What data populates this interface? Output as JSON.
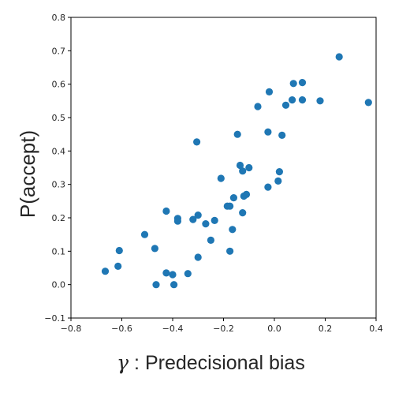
{
  "chart_data": {
    "type": "scatter",
    "xlabel_symbol": "γ",
    "xlabel": " : Predecisional bias",
    "ylabel": "P(accept)",
    "xlim": [
      -0.8,
      0.4
    ],
    "ylim": [
      -0.1,
      0.8
    ],
    "xticks": [
      "−0.8",
      "−0.6",
      "−0.4",
      "−0.2",
      "0.0",
      "0.2",
      "0.4"
    ],
    "yticks": [
      "−0.1",
      "0.0",
      "0.1",
      "0.2",
      "0.3",
      "0.4",
      "0.5",
      "0.6",
      "0.7",
      "0.8"
    ],
    "xtick_values": [
      -0.8,
      -0.6,
      -0.4,
      -0.2,
      0.0,
      0.2,
      0.4
    ],
    "ytick_values": [
      -0.1,
      0.0,
      0.1,
      0.2,
      0.3,
      0.4,
      0.5,
      0.6,
      0.7,
      0.8
    ],
    "marker_color": "#1f77b4",
    "grid": false,
    "points": [
      {
        "x": -0.665,
        "y": 0.04
      },
      {
        "x": -0.615,
        "y": 0.055
      },
      {
        "x": -0.61,
        "y": 0.102
      },
      {
        "x": -0.51,
        "y": 0.15
      },
      {
        "x": -0.47,
        "y": 0.108
      },
      {
        "x": -0.465,
        "y": 0.0
      },
      {
        "x": -0.425,
        "y": 0.22
      },
      {
        "x": -0.425,
        "y": 0.035
      },
      {
        "x": -0.4,
        "y": 0.03
      },
      {
        "x": -0.395,
        "y": 0.0
      },
      {
        "x": -0.38,
        "y": 0.198
      },
      {
        "x": -0.38,
        "y": 0.19
      },
      {
        "x": -0.34,
        "y": 0.033
      },
      {
        "x": -0.32,
        "y": 0.195
      },
      {
        "x": -0.305,
        "y": 0.427
      },
      {
        "x": -0.3,
        "y": 0.208
      },
      {
        "x": -0.3,
        "y": 0.082
      },
      {
        "x": -0.27,
        "y": 0.182
      },
      {
        "x": -0.25,
        "y": 0.133
      },
      {
        "x": -0.235,
        "y": 0.192
      },
      {
        "x": -0.21,
        "y": 0.318
      },
      {
        "x": -0.185,
        "y": 0.235
      },
      {
        "x": -0.175,
        "y": 0.235
      },
      {
        "x": -0.175,
        "y": 0.1
      },
      {
        "x": -0.165,
        "y": 0.165
      },
      {
        "x": -0.16,
        "y": 0.26
      },
      {
        "x": -0.145,
        "y": 0.45
      },
      {
        "x": -0.135,
        "y": 0.357
      },
      {
        "x": -0.125,
        "y": 0.34
      },
      {
        "x": -0.125,
        "y": 0.215
      },
      {
        "x": -0.12,
        "y": 0.265
      },
      {
        "x": -0.11,
        "y": 0.27
      },
      {
        "x": -0.1,
        "y": 0.35
      },
      {
        "x": -0.065,
        "y": 0.533
      },
      {
        "x": -0.025,
        "y": 0.292
      },
      {
        "x": -0.025,
        "y": 0.457
      },
      {
        "x": -0.02,
        "y": 0.577
      },
      {
        "x": 0.015,
        "y": 0.31
      },
      {
        "x": 0.02,
        "y": 0.338
      },
      {
        "x": 0.03,
        "y": 0.447
      },
      {
        "x": 0.045,
        "y": 0.537
      },
      {
        "x": 0.07,
        "y": 0.553
      },
      {
        "x": 0.075,
        "y": 0.602
      },
      {
        "x": 0.11,
        "y": 0.605
      },
      {
        "x": 0.11,
        "y": 0.553
      },
      {
        "x": 0.18,
        "y": 0.55
      },
      {
        "x": 0.255,
        "y": 0.682
      },
      {
        "x": 0.37,
        "y": 0.545
      }
    ]
  }
}
